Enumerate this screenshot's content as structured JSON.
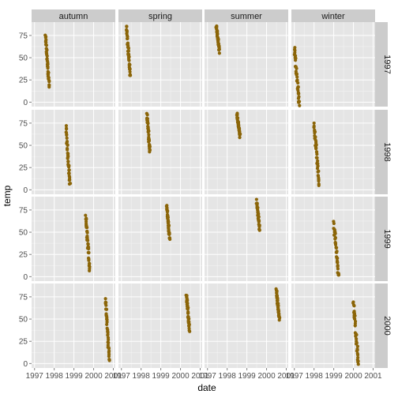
{
  "chart_data": {
    "type": "scatter",
    "xlabel": "date",
    "ylabel": "temp",
    "x_ticks": [
      "1997",
      "1998",
      "1999",
      "2000",
      "2001"
    ],
    "x_range": [
      1996.85,
      2001.1
    ],
    "y_ticks": [
      "0",
      "25",
      "50",
      "75"
    ],
    "y_range": [
      -5,
      90
    ],
    "grid": true,
    "point_color": "#8B6508",
    "panel_bg": "#E5E5E5",
    "strip_bg": "#CCCCCC",
    "col_facets": [
      "autumn",
      "spring",
      "summer",
      "winter"
    ],
    "row_facets": [
      "1997",
      "1998",
      "1999",
      "2000"
    ],
    "panels": [
      {
        "year": "1997",
        "season": "autumn",
        "x_start": 1997.55,
        "x_end": 1997.75,
        "y_top": 74,
        "y_bottom": 18
      },
      {
        "year": "1997",
        "season": "spring",
        "x_start": 1997.25,
        "x_end": 1997.45,
        "y_top": 85,
        "y_bottom": 30
      },
      {
        "year": "1997",
        "season": "summer",
        "x_start": 1997.45,
        "x_end": 1997.6,
        "y_top": 86,
        "y_bottom": 57
      },
      {
        "year": "1997",
        "season": "winter",
        "x_start": 1997.0,
        "x_end": 1997.25,
        "y_top": 61,
        "y_bottom": -2
      },
      {
        "year": "1998",
        "season": "autumn",
        "x_start": 1998.6,
        "x_end": 1998.8,
        "y_top": 68,
        "y_bottom": 7
      },
      {
        "year": "1998",
        "season": "spring",
        "x_start": 1998.3,
        "x_end": 1998.45,
        "y_top": 84,
        "y_bottom": 42
      },
      {
        "year": "1998",
        "season": "summer",
        "x_start": 1998.5,
        "x_end": 1998.65,
        "y_top": 85,
        "y_bottom": 60
      },
      {
        "year": "1998",
        "season": "winter",
        "x_start": 1998.0,
        "x_end": 1998.25,
        "y_top": 73,
        "y_bottom": 7
      },
      {
        "year": "1999",
        "season": "autumn",
        "x_start": 1999.6,
        "x_end": 1999.8,
        "y_top": 67,
        "y_bottom": 9
      },
      {
        "year": "1999",
        "season": "spring",
        "x_start": 1999.3,
        "x_end": 1999.45,
        "y_top": 80,
        "y_bottom": 44
      },
      {
        "year": "1999",
        "season": "summer",
        "x_start": 1999.5,
        "x_end": 1999.65,
        "y_top": 85,
        "y_bottom": 53
      },
      {
        "year": "1999",
        "season": "winter",
        "x_start": 1999.0,
        "x_end": 1999.25,
        "y_top": 60,
        "y_bottom": 0
      },
      {
        "year": "2000",
        "season": "autumn",
        "x_start": 2000.6,
        "x_end": 2000.8,
        "y_top": 73,
        "y_bottom": 3
      },
      {
        "year": "2000",
        "season": "spring",
        "x_start": 2000.3,
        "x_end": 2000.45,
        "y_top": 79,
        "y_bottom": 38
      },
      {
        "year": "2000",
        "season": "summer",
        "x_start": 2000.5,
        "x_end": 2000.65,
        "y_top": 82,
        "y_bottom": 50
      },
      {
        "year": "2000",
        "season": "winter",
        "x_start": 2000.0,
        "x_end": 2000.25,
        "y_top": 67,
        "y_bottom": 2
      }
    ]
  }
}
